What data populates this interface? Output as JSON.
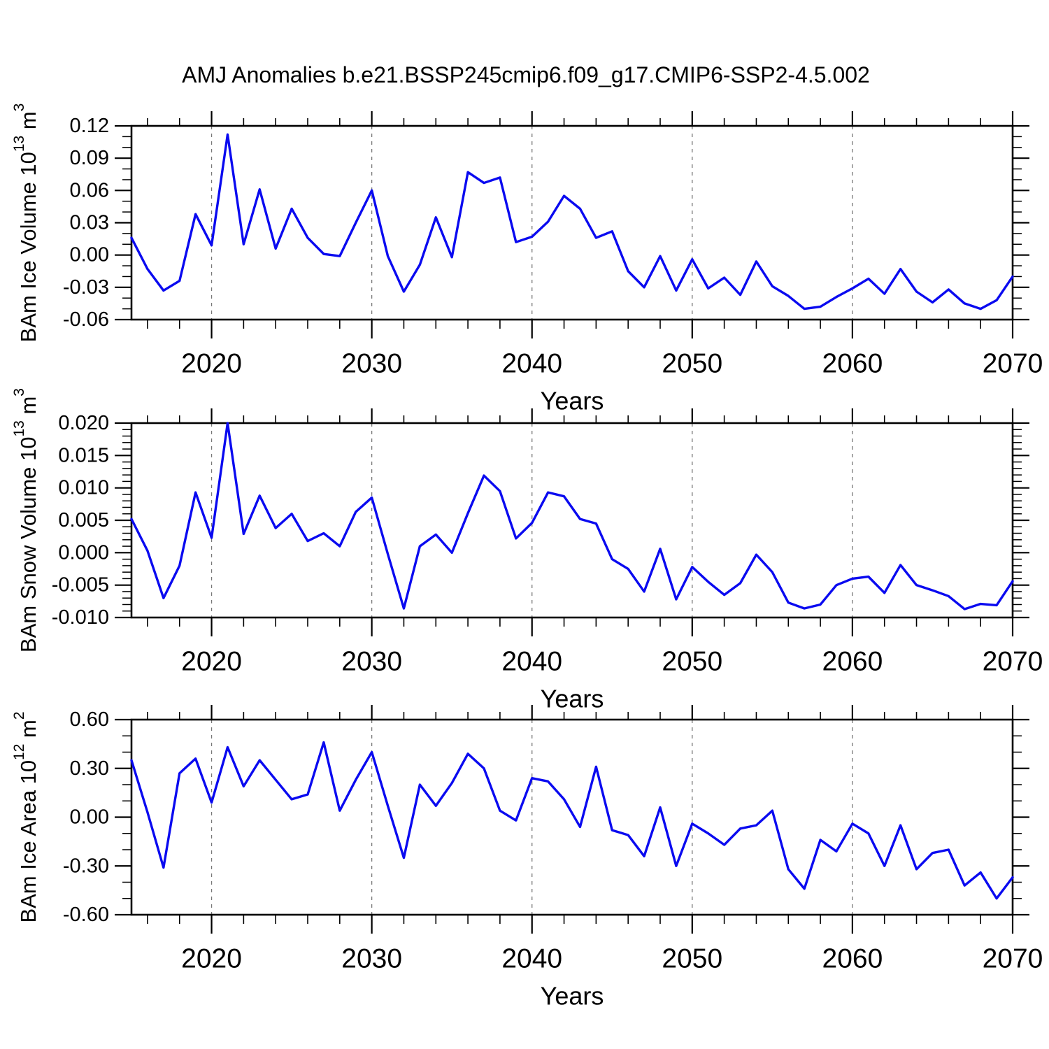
{
  "title": "AMJ Anomalies b.e21.BSSP245cmip6.f09_g17.CMIP6-SSP2-4.5.002",
  "style": {
    "line_color": "#0a0af0",
    "axis_color": "#000000",
    "grid_color": "#787878",
    "background": "#ffffff",
    "text_color": "#000000"
  },
  "chart_data": [
    {
      "type": "line",
      "title": "",
      "xlabel": "Years",
      "ylabel": "BAm Ice Volume 10^13 m^3",
      "ylabel_parts": [
        {
          "t": "BAm Ice Volume 10",
          "sup": false
        },
        {
          "t": "13",
          "sup": true
        },
        {
          "t": " m",
          "sup": false
        },
        {
          "t": "3",
          "sup": true
        }
      ],
      "ylim": [
        -0.06,
        0.12
      ],
      "ytick_step": 0.03,
      "yminor_step": 0.01,
      "y_decimals": 2,
      "xlim": [
        2015,
        2070
      ],
      "xticks_major": [
        2020,
        2030,
        2040,
        2050,
        2060,
        2070
      ],
      "xminor_step": 2,
      "grid_x": [
        2020,
        2030,
        2040,
        2050,
        2060
      ],
      "legend": "none",
      "x": [
        2015,
        2016,
        2017,
        2018,
        2019,
        2020,
        2021,
        2022,
        2023,
        2024,
        2025,
        2026,
        2027,
        2028,
        2029,
        2030,
        2031,
        2032,
        2033,
        2034,
        2035,
        2036,
        2037,
        2038,
        2039,
        2040,
        2041,
        2042,
        2043,
        2044,
        2045,
        2046,
        2047,
        2048,
        2049,
        2050,
        2051,
        2052,
        2053,
        2054,
        2055,
        2056,
        2057,
        2058,
        2059,
        2060,
        2061,
        2062,
        2063,
        2064,
        2065,
        2066,
        2067,
        2068,
        2069,
        2070
      ],
      "values": [
        0.016,
        -0.013,
        -0.033,
        -0.024,
        0.038,
        0.009,
        0.112,
        0.01,
        0.061,
        0.006,
        0.043,
        0.016,
        0.001,
        -0.001,
        0.03,
        0.06,
        -0.001,
        -0.034,
        -0.009,
        0.035,
        -0.002,
        0.077,
        0.067,
        0.072,
        0.012,
        0.017,
        0.031,
        0.055,
        0.043,
        0.016,
        0.022,
        -0.015,
        -0.03,
        -0.001,
        -0.033,
        -0.004,
        -0.031,
        -0.021,
        -0.037,
        -0.006,
        -0.029,
        -0.038,
        -0.05,
        -0.048,
        -0.039,
        -0.031,
        -0.022,
        -0.036,
        -0.013,
        -0.034,
        -0.044,
        -0.032,
        -0.045,
        -0.05,
        -0.042,
        -0.02
      ]
    },
    {
      "type": "line",
      "title": "",
      "xlabel": "Years",
      "ylabel": "BAm Snow Volume 10^13 m^3",
      "ylabel_parts": [
        {
          "t": "BAm Snow Volume 10",
          "sup": false
        },
        {
          "t": "13",
          "sup": true
        },
        {
          "t": " m",
          "sup": false
        },
        {
          "t": "3",
          "sup": true
        }
      ],
      "ylim": [
        -0.01,
        0.02
      ],
      "ytick_step": 0.005,
      "yminor_step": 0.001,
      "y_decimals": 3,
      "xlim": [
        2015,
        2070
      ],
      "xticks_major": [
        2020,
        2030,
        2040,
        2050,
        2060,
        2070
      ],
      "xminor_step": 2,
      "grid_x": [
        2020,
        2030,
        2040,
        2050,
        2060
      ],
      "legend": "none",
      "x": [
        2015,
        2016,
        2017,
        2018,
        2019,
        2020,
        2021,
        2022,
        2023,
        2024,
        2025,
        2026,
        2027,
        2028,
        2029,
        2030,
        2031,
        2032,
        2033,
        2034,
        2035,
        2036,
        2037,
        2038,
        2039,
        2040,
        2041,
        2042,
        2043,
        2044,
        2045,
        2046,
        2047,
        2048,
        2049,
        2050,
        2051,
        2052,
        2053,
        2054,
        2055,
        2056,
        2057,
        2058,
        2059,
        2060,
        2061,
        2062,
        2063,
        2064,
        2065,
        2066,
        2067,
        2068,
        2069,
        2070
      ],
      "values": [
        0.0052,
        0.0003,
        -0.007,
        -0.002,
        0.0093,
        0.0023,
        0.02,
        0.0029,
        0.0088,
        0.0038,
        0.006,
        0.0018,
        0.003,
        0.001,
        0.0063,
        0.0085,
        -0.0002,
        -0.0086,
        0.001,
        0.0028,
        0.0,
        0.0061,
        0.0119,
        0.0095,
        0.0022,
        0.0046,
        0.0093,
        0.0087,
        0.0052,
        0.0045,
        -0.001,
        -0.0025,
        -0.006,
        0.0006,
        -0.0072,
        -0.0022,
        -0.0045,
        -0.0065,
        -0.0047,
        -0.0003,
        -0.003,
        -0.0077,
        -0.0086,
        -0.008,
        -0.005,
        -0.004,
        -0.0037,
        -0.0062,
        -0.0019,
        -0.005,
        -0.0058,
        -0.0067,
        -0.0087,
        -0.0079,
        -0.0081,
        -0.0044
      ]
    },
    {
      "type": "line",
      "title": "",
      "xlabel": "Years",
      "ylabel": "BAm Ice Area 10^12 m^2",
      "ylabel_parts": [
        {
          "t": "BAm Ice Area 10",
          "sup": false
        },
        {
          "t": "12",
          "sup": true
        },
        {
          "t": " m",
          "sup": false
        },
        {
          "t": "2",
          "sup": true
        }
      ],
      "ylim": [
        -0.6,
        0.6
      ],
      "ytick_step": 0.3,
      "yminor_step": 0.1,
      "y_decimals": 2,
      "xlim": [
        2015,
        2070
      ],
      "xticks_major": [
        2020,
        2030,
        2040,
        2050,
        2060,
        2070
      ],
      "xminor_step": 2,
      "grid_x": [
        2020,
        2030,
        2040,
        2050,
        2060
      ],
      "legend": "none",
      "x": [
        2015,
        2016,
        2017,
        2018,
        2019,
        2020,
        2021,
        2022,
        2023,
        2024,
        2025,
        2026,
        2027,
        2028,
        2029,
        2030,
        2031,
        2032,
        2033,
        2034,
        2035,
        2036,
        2037,
        2038,
        2039,
        2040,
        2041,
        2042,
        2043,
        2044,
        2045,
        2046,
        2047,
        2048,
        2049,
        2050,
        2051,
        2052,
        2053,
        2054,
        2055,
        2056,
        2057,
        2058,
        2059,
        2060,
        2061,
        2062,
        2063,
        2064,
        2065,
        2066,
        2067,
        2068,
        2069,
        2070
      ],
      "values": [
        0.35,
        0.03,
        -0.31,
        0.27,
        0.36,
        0.09,
        0.43,
        0.19,
        0.35,
        0.23,
        0.11,
        0.14,
        0.46,
        0.04,
        0.23,
        0.4,
        0.07,
        -0.25,
        0.2,
        0.07,
        0.21,
        0.39,
        0.3,
        0.04,
        -0.02,
        0.24,
        0.22,
        0.11,
        -0.06,
        0.31,
        -0.08,
        -0.11,
        -0.24,
        0.06,
        -0.3,
        -0.04,
        -0.1,
        -0.17,
        -0.07,
        -0.05,
        0.04,
        -0.32,
        -0.44,
        -0.14,
        -0.21,
        -0.04,
        -0.1,
        -0.3,
        -0.05,
        -0.32,
        -0.22,
        -0.2,
        -0.42,
        -0.34,
        -0.5,
        -0.37
      ]
    }
  ]
}
